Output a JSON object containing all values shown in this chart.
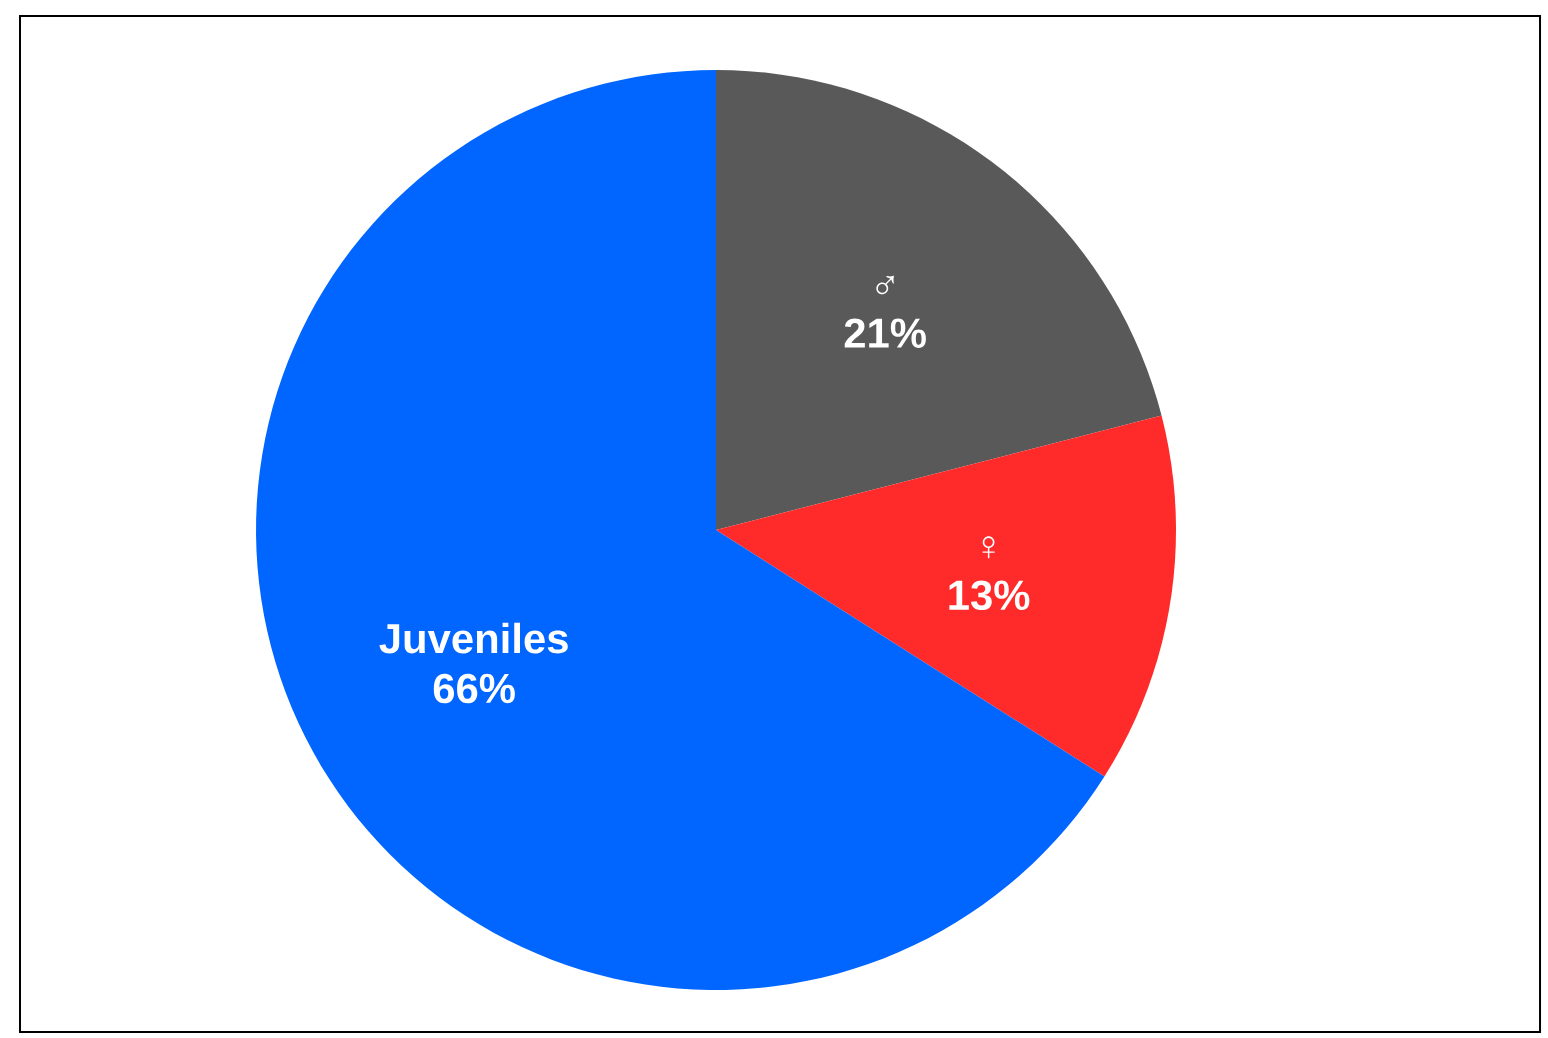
{
  "chart_data": {
    "type": "pie",
    "categories": [
      "♂",
      "♀",
      "Juveniles"
    ],
    "values": [
      21,
      13,
      66
    ],
    "colors": [
      "#595959",
      "#ff2a2a",
      "#0066ff"
    ],
    "value_labels": [
      "21%",
      "13%",
      "66%"
    ]
  }
}
